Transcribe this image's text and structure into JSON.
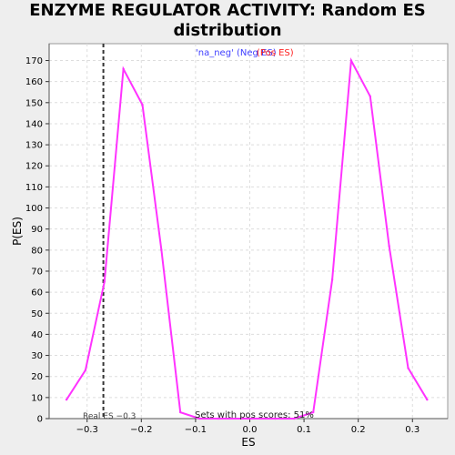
{
  "chart_data": {
    "type": "line",
    "title": "ENZYME REGULATOR ACTIVITY: Random ES distribution",
    "xlabel": "ES",
    "ylabel": "P(ES)",
    "xlim": [
      -0.37,
      0.365
    ],
    "ylim": [
      0,
      178
    ],
    "xticks": [
      -0.3,
      -0.2,
      -0.1,
      0.0,
      0.1,
      0.2,
      0.3
    ],
    "xtick_labels": [
      "−0.3",
      "−0.2",
      "−0.1",
      "0.0",
      "0.1",
      "0.2",
      "0.3"
    ],
    "yticks": [
      0,
      10,
      20,
      30,
      40,
      50,
      60,
      70,
      80,
      90,
      100,
      110,
      120,
      130,
      140,
      150,
      160,
      170
    ],
    "grid": true,
    "legend": {
      "neg_label": "'na_neg' (Neg ES)",
      "pos_label": "(Pos ES)",
      "neg_color": "#4040ff",
      "pos_color": "#ff2020"
    },
    "series_color": "#ff33ff",
    "series": [
      {
        "x": [
          -0.338,
          -0.303,
          -0.268,
          -0.233,
          -0.198,
          -0.163,
          -0.128,
          -0.093,
          -0.058,
          0.047,
          0.082,
          0.117,
          0.152,
          0.187,
          0.222,
          0.257,
          0.292,
          0.327
        ],
        "y": [
          9,
          23,
          65,
          166,
          149,
          80,
          3,
          0,
          0,
          0,
          0,
          3,
          66,
          170,
          153,
          82,
          24,
          9
        ]
      }
    ],
    "real_es": -0.27,
    "annotations": {
      "real_es_label": "Real ES −0.3",
      "pos_scores_label": "Sets with pos scores: 51%"
    }
  }
}
